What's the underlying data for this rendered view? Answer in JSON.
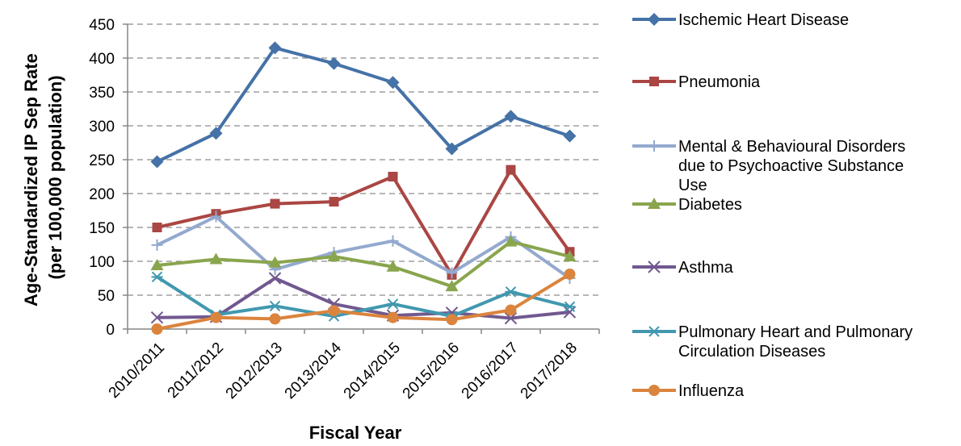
{
  "chart_data": {
    "type": "line",
    "title": "",
    "xlabel": "Fiscal Year",
    "ylabel": [
      "Age-Standardized IP Sep Rate",
      "(per 100,000 population)"
    ],
    "categories": [
      "2010/2011",
      "2011/2012",
      "2012/2013",
      "2013/2014",
      "2014/2015",
      "2015/2016",
      "2016/2017",
      "2017/2018"
    ],
    "ylim": [
      0,
      450
    ],
    "yticks": [
      0,
      50,
      100,
      150,
      200,
      250,
      300,
      350,
      400,
      450
    ],
    "grid": true,
    "legend_position": "right",
    "series": [
      {
        "name": [
          "Ischemic Heart Disease"
        ],
        "color": "#4572a7",
        "marker": "diamond",
        "values": [
          247,
          289,
          415,
          392,
          364,
          266,
          314,
          285
        ]
      },
      {
        "name": [
          "Pneumonia"
        ],
        "color": "#aa4643",
        "marker": "square",
        "values": [
          150,
          170,
          185,
          188,
          225,
          80,
          235,
          114
        ]
      },
      {
        "name": [
          "Mental & Behavioural Disorders",
          "due to Psychoactive Substance",
          "Use"
        ],
        "color": "#93a9cf",
        "marker": "plus",
        "values": [
          124,
          166,
          88,
          113,
          130,
          83,
          136,
          75
        ]
      },
      {
        "name": [
          "Diabetes"
        ],
        "color": "#89a54e",
        "marker": "triangle",
        "values": [
          94,
          103,
          98,
          107,
          92,
          63,
          129,
          107
        ]
      },
      {
        "name": [
          "Asthma"
        ],
        "color": "#71588f",
        "marker": "x",
        "values": [
          17,
          18,
          75,
          37,
          20,
          24,
          16,
          25
        ]
      },
      {
        "name": [
          "Pulmonary Heart and Pulmonary",
          "Circulation Diseases"
        ],
        "color": "#4198af",
        "marker": "star",
        "values": [
          77,
          21,
          34,
          19,
          37,
          19,
          55,
          33
        ]
      },
      {
        "name": [
          "Influenza"
        ],
        "color": "#db843d",
        "marker": "circle",
        "values": [
          0,
          17,
          15,
          27,
          17,
          14,
          28,
          81
        ]
      }
    ]
  }
}
